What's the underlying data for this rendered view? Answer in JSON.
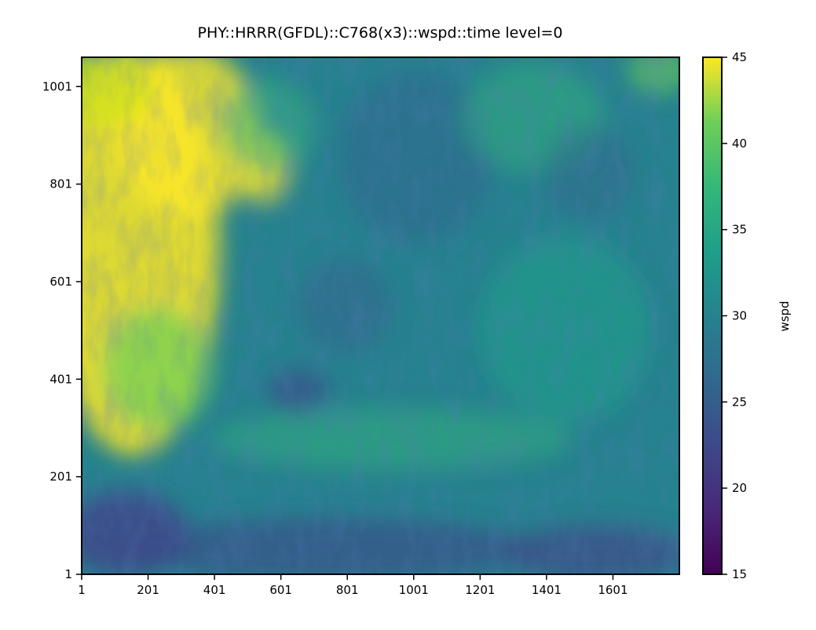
{
  "chart_data": {
    "type": "heatmap",
    "title": "PHY::HRRR(GFDL)::C768(x3)::wspd::time level=0",
    "xlabel": "",
    "ylabel": "",
    "x_ticks": [
      1,
      201,
      401,
      601,
      801,
      1001,
      1201,
      1401,
      1601
    ],
    "y_ticks": [
      1,
      201,
      401,
      601,
      801,
      1001
    ],
    "xlim": [
      1,
      1801
    ],
    "ylim": [
      1,
      1061
    ],
    "colorbar": {
      "label": "wspd",
      "ticks": [
        15,
        20,
        25,
        30,
        35,
        40,
        45
      ],
      "range": [
        15,
        45
      ],
      "colormap": "viridis"
    },
    "field_regions": [
      {
        "name": "high wind band, west edge",
        "x_range": [
          1,
          400
        ],
        "y_range": [
          400,
          1061
        ],
        "wspd": 43
      },
      {
        "name": "high wind patch",
        "x_range": [
          500,
          620
        ],
        "y_range": [
          760,
          880
        ],
        "wspd": 42
      },
      {
        "name": "vortex center",
        "x_range": [
          760,
          840
        ],
        "y_range": [
          560,
          620
        ],
        "wspd": 27
      },
      {
        "name": "low wind area, southwest",
        "x_range": [
          1,
          300
        ],
        "y_range": [
          1,
          160
        ],
        "wspd": 19
      },
      {
        "name": "low wind area, southeast",
        "x_range": [
          1300,
          1700
        ],
        "y_range": [
          1,
          100
        ],
        "wspd": 21
      },
      {
        "name": "background",
        "x_range": [
          1,
          1801
        ],
        "y_range": [
          1,
          1061
        ],
        "wspd": 29
      }
    ]
  }
}
